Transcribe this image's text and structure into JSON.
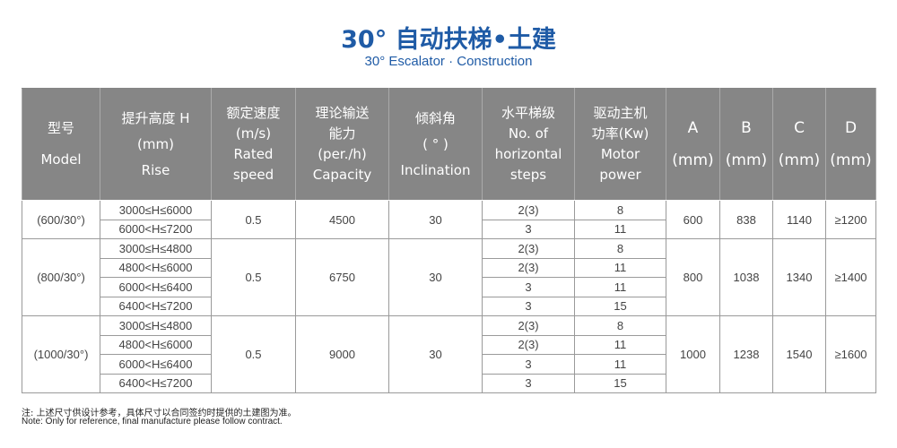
{
  "header": {
    "title": "30° 自动扶梯•土建",
    "subtitle": "30° Escalator · Construction"
  },
  "table": {
    "headers": [
      [
        "型号",
        "Model"
      ],
      [
        "提升高度 H",
        "(mm)",
        "Rise"
      ],
      [
        "额定速度",
        "(m/s)",
        "Rated",
        "speed"
      ],
      [
        "理论输送",
        "能力",
        "(per./h)",
        "Capacity"
      ],
      [
        "倾斜角",
        "( ° )",
        "Inclination"
      ],
      [
        "水平梯级",
        "No. of",
        "horizontal",
        "steps"
      ],
      [
        "驱动主机",
        "功率(Kw)",
        "Motor",
        "power"
      ],
      [
        "A",
        "(mm)"
      ],
      [
        "B",
        "(mm)"
      ],
      [
        "C",
        "(mm)"
      ],
      [
        "D",
        "(mm)"
      ]
    ],
    "groups": [
      {
        "model": "(600/30°)",
        "speed": "0.5",
        "capacity": "4500",
        "inclination": "30",
        "a": "600",
        "b": "838",
        "c": "1140",
        "d": "≥1200",
        "rows": [
          {
            "rise": "3000≤H≤6000",
            "steps": "2(3)",
            "power": "8"
          },
          {
            "rise": "6000<H≤7200",
            "steps": "3",
            "power": "11"
          }
        ]
      },
      {
        "model": "(800/30°)",
        "speed": "0.5",
        "capacity": "6750",
        "inclination": "30",
        "a": "800",
        "b": "1038",
        "c": "1340",
        "d": "≥1400",
        "rows": [
          {
            "rise": "3000≤H≤4800",
            "steps": "2(3)",
            "power": "8"
          },
          {
            "rise": "4800<H≤6000",
            "steps": "2(3)",
            "power": "11"
          },
          {
            "rise": "6000<H≤6400",
            "steps": "3",
            "power": "11"
          },
          {
            "rise": "6400<H≤7200",
            "steps": "3",
            "power": "15"
          }
        ]
      },
      {
        "model": "(1000/30°)",
        "speed": "0.5",
        "capacity": "9000",
        "inclination": "30",
        "a": "1000",
        "b": "1238",
        "c": "1540",
        "d": "≥1600",
        "rows": [
          {
            "rise": "3000≤H≤4800",
            "steps": "2(3)",
            "power": "8"
          },
          {
            "rise": "4800<H≤6000",
            "steps": "2(3)",
            "power": "11"
          },
          {
            "rise": "6000<H≤6400",
            "steps": "3",
            "power": "11"
          },
          {
            "rise": "6400<H≤7200",
            "steps": "3",
            "power": "15"
          }
        ]
      }
    ]
  },
  "notes": {
    "cn": "注: 上述尺寸供设计参考，具体尺寸以合同签约时提供的土建图为准。",
    "en": "Note: Only for reference, final manufacture please follow contract."
  }
}
